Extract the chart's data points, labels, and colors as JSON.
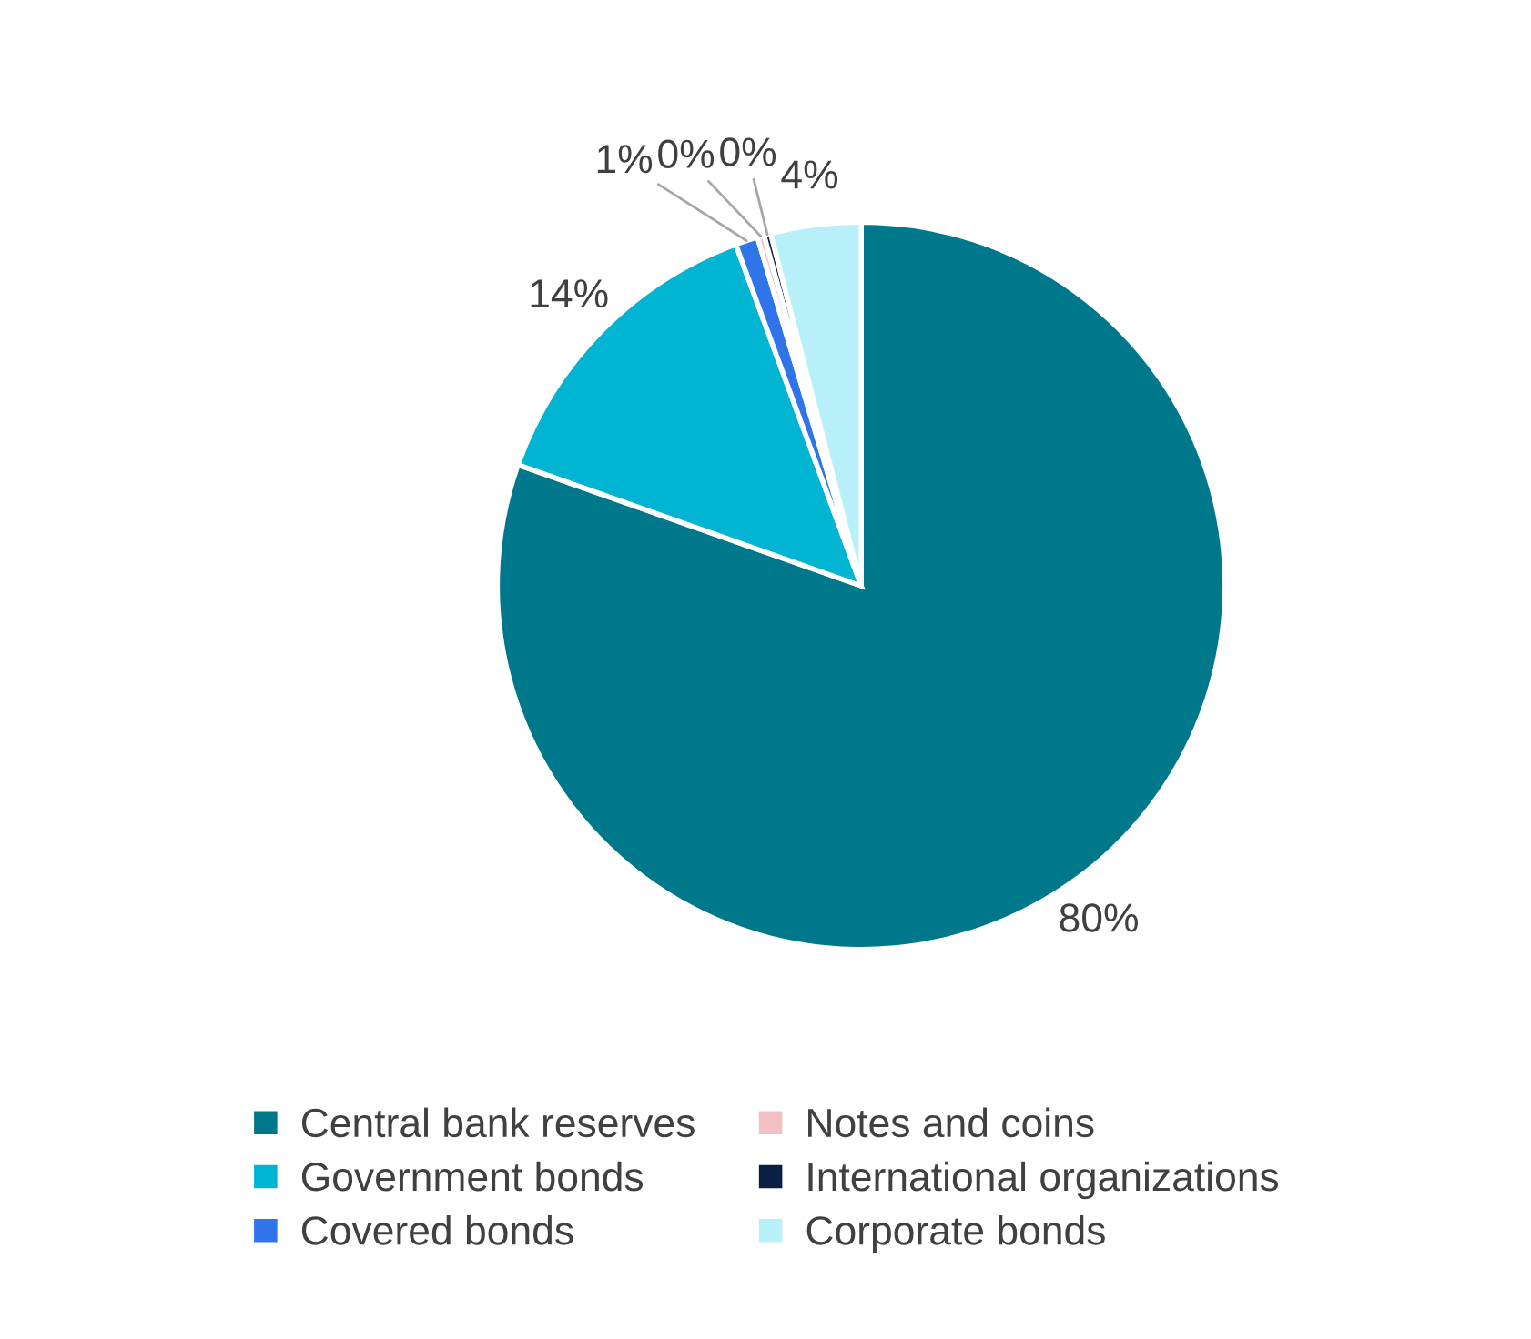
{
  "chart_data": {
    "type": "pie",
    "categories": [
      "Central bank reserves",
      "Government bonds",
      "Covered bonds",
      "Notes and coins",
      "International organizations",
      "Corporate bonds"
    ],
    "values": [
      80.4,
      14.0,
      1.0,
      0.3,
      0.3,
      4.0
    ],
    "value_labels": [
      "80%",
      "14%",
      "1%",
      "0%",
      "0%",
      "4%"
    ],
    "colors": [
      "#00788c",
      "#00b4d2",
      "#2f74e8",
      "#f2c0c4",
      "#0a1f44",
      "#b8f0fa"
    ],
    "legend": "bottom"
  }
}
